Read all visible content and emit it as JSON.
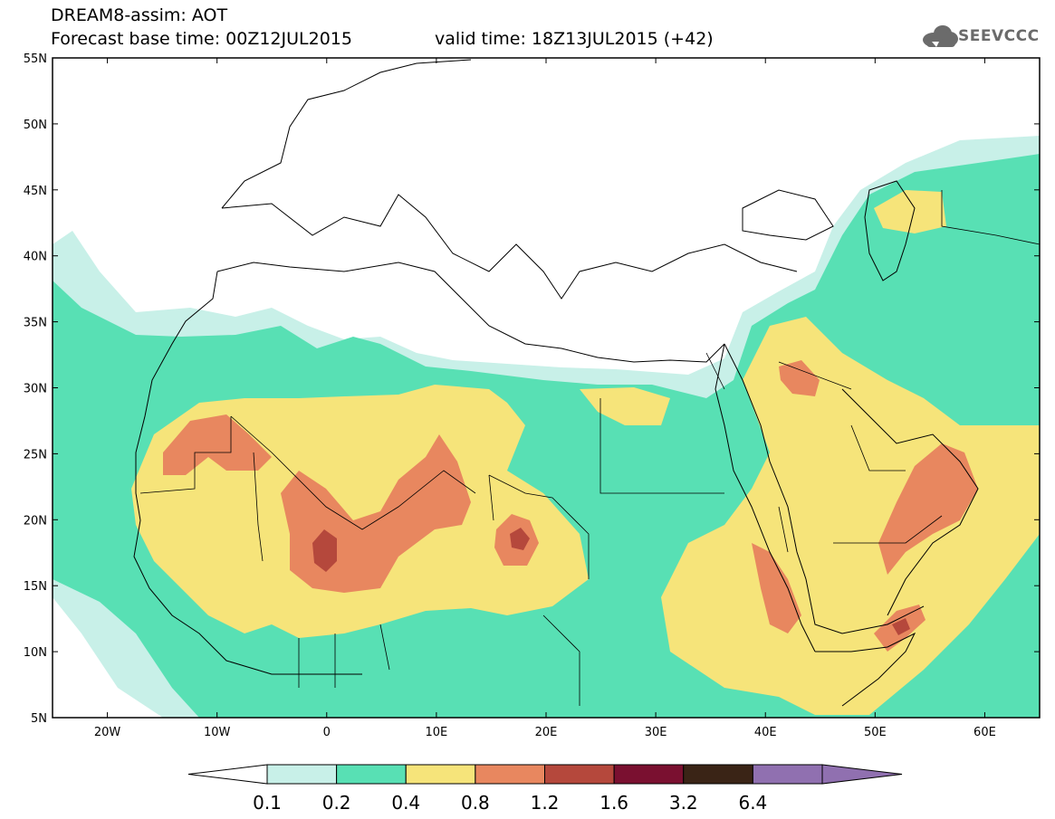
{
  "header": {
    "title_line1": "DREAM8-assim: AOT",
    "title_line2": "Forecast base time: 00Z12JUL2015",
    "valid_time": "valid time: 18Z13JUL2015 (+42)"
  },
  "logo": {
    "text": "SEEVCCC"
  },
  "map": {
    "projection": "lat-lon",
    "lon_range": [
      -25,
      65
    ],
    "lat_range": [
      5,
      55
    ],
    "lat_ticks": [
      "55N",
      "50N",
      "45N",
      "40N",
      "35N",
      "30N",
      "25N",
      "20N",
      "15N",
      "10N",
      "5N"
    ],
    "lon_ticks": [
      "20W",
      "10W",
      "0",
      "10E",
      "20E",
      "30E",
      "40E",
      "50E",
      "60E"
    ]
  },
  "colorbar": {
    "labels": [
      "0.1",
      "0.2",
      "0.4",
      "0.8",
      "1.2",
      "1.6",
      "3.2",
      "6.4"
    ],
    "colors": [
      "#ffffff",
      "#c8f0e8",
      "#58e0b4",
      "#f6e47a",
      "#e8875f",
      "#b5483c",
      "#7a1030",
      "#3a2416",
      "#9070b0"
    ]
  }
}
